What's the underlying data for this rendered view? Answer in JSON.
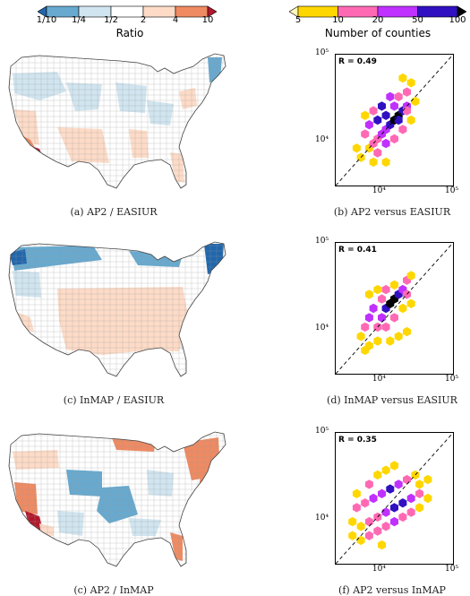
{
  "ratio_colorbar": {
    "title": "Ratio",
    "ticks": [
      "1/10",
      "1/4",
      "1/2",
      "2",
      "4",
      "10"
    ],
    "colors": [
      "#2166ac",
      "#67a9cf",
      "#d1e5f0",
      "#ffffff",
      "#fddbc7",
      "#ef8a62",
      "#b2182b"
    ]
  },
  "count_colorbar": {
    "title": "Number of counties",
    "ticks": [
      "5",
      "10",
      "20",
      "50",
      "100"
    ],
    "colors": [
      "#fff7bc",
      "#ffd700",
      "#ff69b4",
      "#c030ff",
      "#3010c0",
      "#000000"
    ]
  },
  "panels": [
    {
      "map_caption": "(a) AP2 / EASIUR",
      "plot_caption": "(b) AP2 versus EASIUR",
      "r_label": "R = 0.49"
    },
    {
      "map_caption": "(c) InMAP / EASIUR",
      "plot_caption": "(d) InMAP versus EASIUR",
      "r_label": "R = 0.41"
    },
    {
      "map_caption": "(c) AP2 / InMAP",
      "plot_caption": "(f) AP2 versus InMAP",
      "r_label": "R = 0.35"
    }
  ],
  "plot_axes": {
    "y_ticks": [
      "10⁵",
      "10⁴"
    ],
    "x_ticks": [
      "10⁴",
      "10⁵"
    ]
  }
}
